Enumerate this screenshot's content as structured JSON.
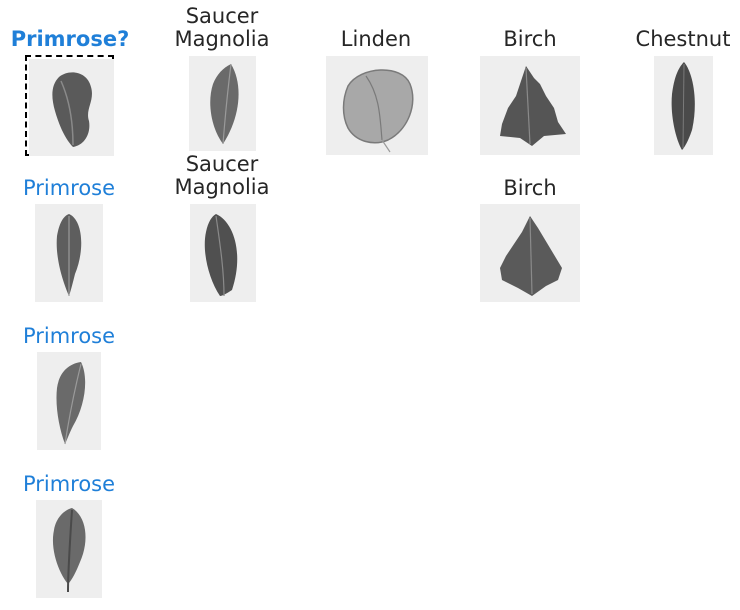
{
  "query": {
    "label": "Primrose?",
    "leaf": "primrose-query-leaf"
  },
  "gallery": [
    {
      "label_line1": "Saucer",
      "label_line2": "Magnolia",
      "leaf": "saucer-magnolia-leaf"
    },
    {
      "label_line1": "Linden",
      "leaf": "linden-leaf"
    },
    {
      "label_line1": "Birch",
      "leaf": "birch-leaf"
    },
    {
      "label_line1": "Chestnut",
      "leaf": "chestnut-leaf"
    }
  ],
  "row2": [
    {
      "label_line1": "Primrose",
      "leaf": "primrose-leaf"
    },
    {
      "label_line1": "Saucer",
      "label_line2": "Magnolia",
      "leaf": "saucer-magnolia-leaf"
    },
    {
      "label_line1": "Birch",
      "leaf": "birch-leaf"
    }
  ],
  "row3": [
    {
      "label_line1": "Primrose",
      "leaf": "primrose-leaf"
    }
  ],
  "row4": [
    {
      "label_line1": "Primrose",
      "leaf": "primrose-leaf"
    }
  ],
  "colors": {
    "match_label": "#1f7fd8",
    "other_label": "#262626",
    "thumb_bg": "#eeeeee"
  }
}
